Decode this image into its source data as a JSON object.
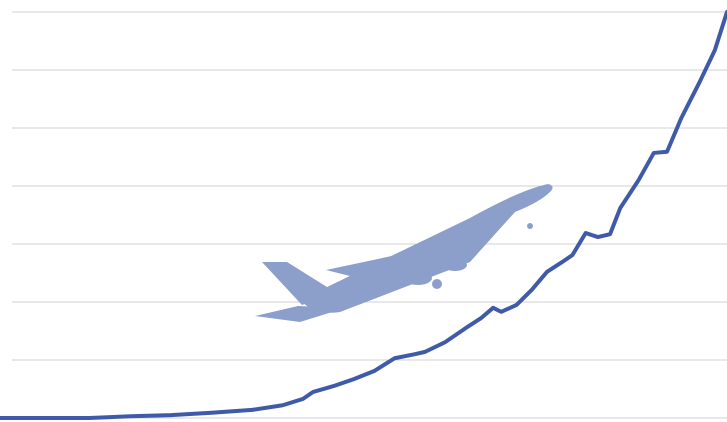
{
  "chart_data": {
    "type": "line",
    "x": [
      12,
      100,
      140,
      180,
      220,
      260,
      290,
      310,
      320,
      340,
      360,
      380,
      400,
      420,
      430,
      450,
      470,
      485,
      497,
      505,
      520,
      535,
      550,
      565,
      575,
      588,
      600,
      612,
      622,
      640,
      655,
      668,
      682,
      700,
      715,
      727
    ],
    "series": [
      {
        "color": "#3f5aa8",
        "values": [
          0,
          0,
          0.03,
          0.05,
          0.09,
          0.14,
          0.22,
          0.33,
          0.45,
          0.55,
          0.67,
          0.81,
          1.03,
          1.1,
          1.14,
          1.31,
          1.55,
          1.72,
          1.9,
          1.83,
          1.95,
          2.21,
          2.52,
          2.69,
          2.81,
          3.19,
          3.12,
          3.17,
          3.62,
          4.1,
          4.57,
          4.59,
          5.17,
          5.79,
          6.34,
          7
        ]
      }
    ],
    "xlim": [
      12,
      727
    ],
    "ylim": [
      0,
      7
    ],
    "yticks": [
      0,
      1,
      2,
      3,
      4,
      5,
      6,
      7
    ],
    "grid": true
  }
}
